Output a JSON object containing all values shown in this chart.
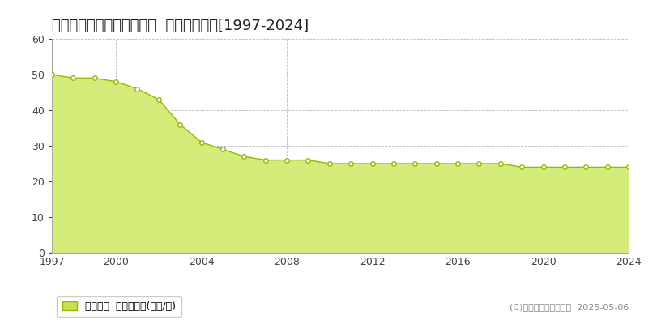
{
  "title": "加古川市別府町新野辺北町  基準地価推移[1997-2024]",
  "years": [
    1997,
    1998,
    1999,
    2000,
    2001,
    2002,
    2003,
    2004,
    2005,
    2006,
    2007,
    2008,
    2009,
    2010,
    2011,
    2012,
    2013,
    2014,
    2015,
    2016,
    2017,
    2018,
    2019,
    2020,
    2021,
    2022,
    2023,
    2024
  ],
  "values": [
    50,
    49,
    49,
    48,
    46,
    43,
    36,
    31,
    29,
    27,
    26,
    26,
    26,
    25,
    25,
    25,
    25,
    25,
    25,
    25,
    25,
    25,
    24,
    24,
    24,
    24,
    24,
    24
  ],
  "ylim": [
    0,
    60
  ],
  "yticks": [
    0,
    10,
    20,
    30,
    40,
    50,
    60
  ],
  "xticks": [
    1997,
    2000,
    2004,
    2008,
    2012,
    2016,
    2020,
    2024
  ],
  "fill_color": "#d4ed7a",
  "line_color": "#9ab800",
  "marker_facecolor": "#ffffff",
  "marker_edgecolor": "#9ab800",
  "grid_color": "#bbbbbb",
  "bg_color": "#ffffff",
  "legend_label": "基準地価  平均坪単価(万円/坪)",
  "legend_patch_color": "#c8e050",
  "legend_patch_edge": "#9ab800",
  "copyright_text": "(C)土地価格ドットコム  2025-05-06",
  "title_fontsize": 13,
  "axis_fontsize": 9,
  "legend_fontsize": 9,
  "copyright_fontsize": 8,
  "spine_color": "#aaaaaa"
}
